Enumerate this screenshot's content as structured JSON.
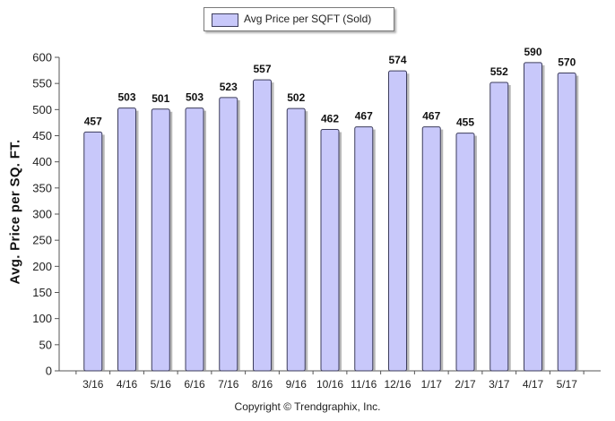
{
  "chart_data": {
    "type": "bar",
    "categories": [
      "3/16",
      "4/16",
      "5/16",
      "6/16",
      "7/16",
      "8/16",
      "9/16",
      "10/16",
      "11/16",
      "12/16",
      "1/17",
      "2/17",
      "3/17",
      "4/17",
      "5/17"
    ],
    "series": [
      {
        "name": "Avg Price per SQFT (Sold)",
        "values": [
          457,
          503,
          501,
          503,
          523,
          557,
          502,
          462,
          467,
          574,
          467,
          455,
          552,
          590,
          570
        ]
      }
    ],
    "ylabel": "Avg. Price per SQ. FT.",
    "xlabel": "",
    "ylim": [
      0,
      600
    ],
    "yticks": [
      0,
      50,
      100,
      150,
      200,
      250,
      300,
      350,
      400,
      450,
      500,
      550,
      600
    ],
    "grid": false,
    "legend_position": "top-center",
    "bar_color": "#c8c8fa",
    "bar_edge_color": "#3d3d5c"
  },
  "footer": {
    "copyright": "Copyright © Trendgraphix, Inc."
  }
}
